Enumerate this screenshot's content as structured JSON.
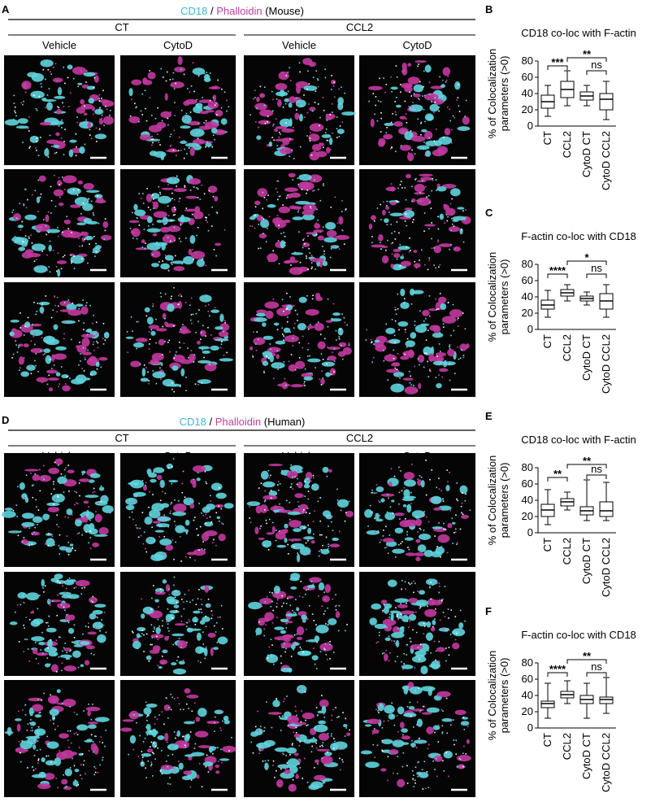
{
  "panels": [
    {
      "label": "A",
      "title": [
        {
          "text": "CD18",
          "color": "#3fb6d6"
        },
        {
          "text": "/"
        },
        {
          "text": "Phalloidin",
          "color": "#c23ea1"
        },
        {
          "text": "(Mouse)"
        }
      ],
      "groups": [
        {
          "name": "CT",
          "conditions": [
            "Vehicle",
            "CytoD"
          ]
        },
        {
          "name": "CCL2",
          "conditions": [
            "Vehicle",
            "CytoD"
          ]
        }
      ]
    },
    {
      "label": "D",
      "title": [
        {
          "text": "CD18",
          "color": "#3fb6d6"
        },
        {
          "text": "/"
        },
        {
          "text": "Phalloidin",
          "color": "#c23ea1"
        },
        {
          "text": "(Human)"
        }
      ],
      "groups": [
        {
          "name": "CT",
          "conditions": [
            "Vehicle",
            "CytoD"
          ]
        },
        {
          "name": "CCL2",
          "conditions": [
            "Vehicle",
            "CytoD"
          ]
        }
      ]
    }
  ],
  "chart_data": [
    {
      "type": "box",
      "label": "B",
      "title": "CD18 co-loc with F-actin",
      "ylabel": [
        "% of Colocalization",
        "parameters (>0)"
      ],
      "categories": [
        "CT",
        "CCL2",
        "CytoD CT",
        "CytoD CCL2"
      ],
      "boxes": [
        {
          "min": 12,
          "q1": 22,
          "median": 30,
          "q3": 38,
          "max": 50
        },
        {
          "min": 25,
          "q1": 35,
          "median": 45,
          "q3": 55,
          "max": 68
        },
        {
          "min": 25,
          "q1": 32,
          "median": 37,
          "q3": 42,
          "max": 50
        },
        {
          "min": 8,
          "q1": 20,
          "median": 33,
          "q3": 40,
          "max": 55
        }
      ],
      "ylim": [
        0,
        80
      ],
      "yticks": [
        0,
        20,
        40,
        60,
        80
      ],
      "significance": [
        {
          "pair": [
            "CT",
            "CCL2"
          ],
          "label": "***"
        },
        {
          "pair": [
            "CCL2",
            "CytoD CCL2"
          ],
          "label": "**"
        },
        {
          "pair": [
            "CytoD CT",
            "CytoD CCL2"
          ],
          "label": "ns"
        }
      ]
    },
    {
      "type": "box",
      "label": "C",
      "title": "F-actin co-loc with CD18",
      "ylabel": [
        "% of Colocalization",
        "parameters (>0)"
      ],
      "categories": [
        "CT",
        "CCL2",
        "CytoD CT",
        "CytoD CCL2"
      ],
      "boxes": [
        {
          "min": 15,
          "q1": 25,
          "median": 30,
          "q3": 36,
          "max": 48
        },
        {
          "min": 35,
          "q1": 41,
          "median": 45,
          "q3": 49,
          "max": 55
        },
        {
          "min": 30,
          "q1": 35,
          "median": 38,
          "q3": 41,
          "max": 46
        },
        {
          "min": 15,
          "q1": 25,
          "median": 35,
          "q3": 44,
          "max": 55
        }
      ],
      "ylim": [
        0,
        80
      ],
      "yticks": [
        0,
        20,
        40,
        60,
        80
      ],
      "significance": [
        {
          "pair": [
            "CT",
            "CCL2"
          ],
          "label": "****"
        },
        {
          "pair": [
            "CCL2",
            "CytoD CCL2"
          ],
          "label": "*"
        },
        {
          "pair": [
            "CytoD CT",
            "CytoD CCL2"
          ],
          "label": "ns"
        }
      ]
    },
    {
      "type": "box",
      "label": "E",
      "title": "CD18 co-loc with F-actin",
      "ylabel": [
        "% of Colocalization",
        "parameters (>0)"
      ],
      "categories": [
        "CT",
        "CCL2",
        "CytoD CT",
        "CytoD CCL2"
      ],
      "boxes": [
        {
          "min": 10,
          "q1": 20,
          "median": 28,
          "q3": 35,
          "max": 53
        },
        {
          "min": 28,
          "q1": 33,
          "median": 38,
          "q3": 42,
          "max": 50
        },
        {
          "min": 15,
          "q1": 22,
          "median": 27,
          "q3": 32,
          "max": 65
        },
        {
          "min": 15,
          "q1": 20,
          "median": 27,
          "q3": 38,
          "max": 62
        }
      ],
      "ylim": [
        0,
        80
      ],
      "yticks": [
        0,
        20,
        40,
        60,
        80
      ],
      "significance": [
        {
          "pair": [
            "CT",
            "CCL2"
          ],
          "label": "**"
        },
        {
          "pair": [
            "CCL2",
            "CytoD CCL2"
          ],
          "label": "**"
        },
        {
          "pair": [
            "CytoD CT",
            "CytoD CCL2"
          ],
          "label": "ns"
        }
      ]
    },
    {
      "type": "box",
      "label": "F",
      "title": "F-actin co-loc with CD18",
      "ylabel": [
        "% of Colocalization",
        "parameters (>0)"
      ],
      "categories": [
        "CT",
        "CCL2",
        "CytoD CT",
        "CytoD CCL2"
      ],
      "boxes": [
        {
          "min": 12,
          "q1": 25,
          "median": 30,
          "q3": 33,
          "max": 55
        },
        {
          "min": 30,
          "q1": 37,
          "median": 41,
          "q3": 45,
          "max": 58
        },
        {
          "min": 12,
          "q1": 30,
          "median": 35,
          "q3": 40,
          "max": 55
        },
        {
          "min": 18,
          "q1": 30,
          "median": 35,
          "q3": 38,
          "max": 62
        }
      ],
      "ylim": [
        0,
        80
      ],
      "yticks": [
        0,
        20,
        40,
        60,
        80
      ],
      "significance": [
        {
          "pair": [
            "CT",
            "CCL2"
          ],
          "label": "****"
        },
        {
          "pair": [
            "CCL2",
            "CytoD CCL2"
          ],
          "label": "**"
        },
        {
          "pair": [
            "CytoD CT",
            "CytoD CCL2"
          ],
          "label": "ns"
        }
      ]
    }
  ]
}
